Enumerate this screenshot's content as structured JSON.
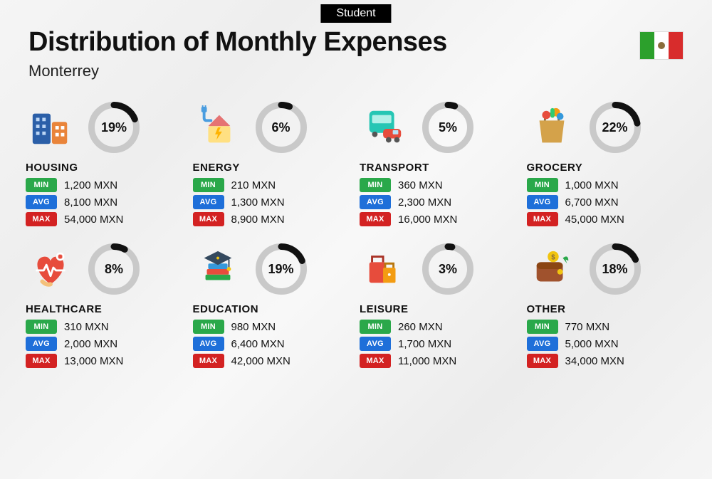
{
  "badge": "Student",
  "title": "Distribution of Monthly Expenses",
  "subtitle": "Monterrey",
  "currency": "MXN",
  "flag_colors": {
    "left": "#2ca02c",
    "center": "#ffffff",
    "right": "#d82c2c"
  },
  "donut": {
    "size": 72,
    "stroke_width": 9,
    "track_color": "#c9c9c9",
    "arc_color": "#111111",
    "label_fontsize": 18
  },
  "tags": {
    "min": {
      "label": "MIN",
      "color": "#2aa84a"
    },
    "avg": {
      "label": "AVG",
      "color": "#1e6fd9"
    },
    "max": {
      "label": "MAX",
      "color": "#d32222"
    }
  },
  "categories": [
    {
      "name": "HOUSING",
      "percent": 19,
      "min": "1,200",
      "avg": "8,100",
      "max": "54,000",
      "icon": "housing"
    },
    {
      "name": "ENERGY",
      "percent": 6,
      "min": "210",
      "avg": "1,300",
      "max": "8,900",
      "icon": "energy"
    },
    {
      "name": "TRANSPORT",
      "percent": 5,
      "min": "360",
      "avg": "2,300",
      "max": "16,000",
      "icon": "transport"
    },
    {
      "name": "GROCERY",
      "percent": 22,
      "min": "1,000",
      "avg": "6,700",
      "max": "45,000",
      "icon": "grocery"
    },
    {
      "name": "HEALTHCARE",
      "percent": 8,
      "min": "310",
      "avg": "2,000",
      "max": "13,000",
      "icon": "healthcare"
    },
    {
      "name": "EDUCATION",
      "percent": 19,
      "min": "980",
      "avg": "6,400",
      "max": "42,000",
      "icon": "education"
    },
    {
      "name": "LEISURE",
      "percent": 3,
      "min": "260",
      "avg": "1,700",
      "max": "11,000",
      "icon": "leisure"
    },
    {
      "name": "OTHER",
      "percent": 18,
      "min": "770",
      "avg": "5,000",
      "max": "34,000",
      "icon": "other"
    }
  ]
}
